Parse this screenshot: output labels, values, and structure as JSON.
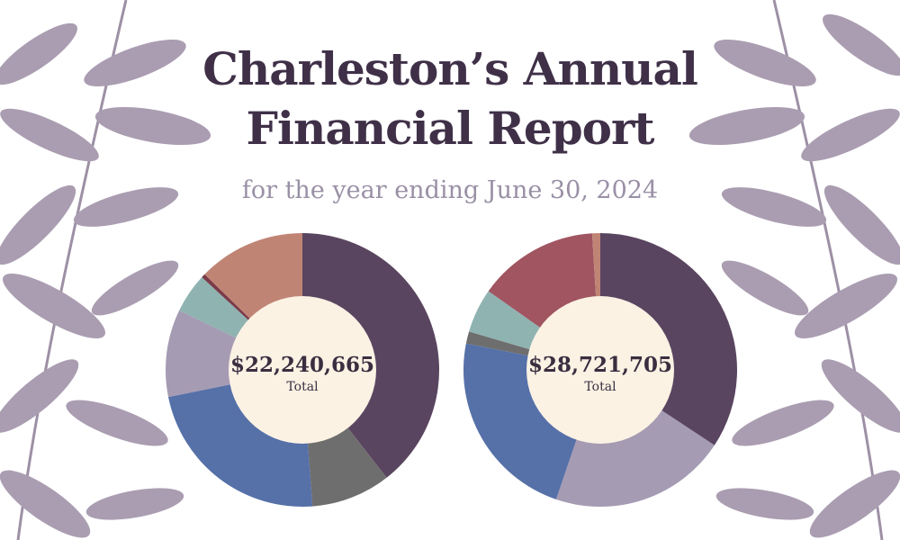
{
  "title_line1": "Charleston’s Annual",
  "title_line2": "Financial Report",
  "subtitle": "for the year ending June 30, 2024",
  "chart_data": [
    {
      "type": "pie",
      "total_value": "$22,240,665",
      "total_label": "Total",
      "values": [
        42.0,
        10.0,
        24.5,
        11.0,
        5.0,
        0.5,
        13.5
      ],
      "colors": [
        "#5a4560",
        "#6e6e6e",
        "#5670a8",
        "#a59bb3",
        "#8fb3b1",
        "#7a3b48",
        "#c08475"
      ]
    },
    {
      "type": "pie",
      "total_value": "$28,721,705",
      "total_label": "Total",
      "values": [
        36.0,
        22.0,
        24.0,
        1.5,
        5.5,
        15.0,
        1.0
      ],
      "colors": [
        "#5a4560",
        "#a59bb3",
        "#5670a8",
        "#6e6e6e",
        "#8fb3b1",
        "#a05560",
        "#c08475"
      ]
    }
  ]
}
